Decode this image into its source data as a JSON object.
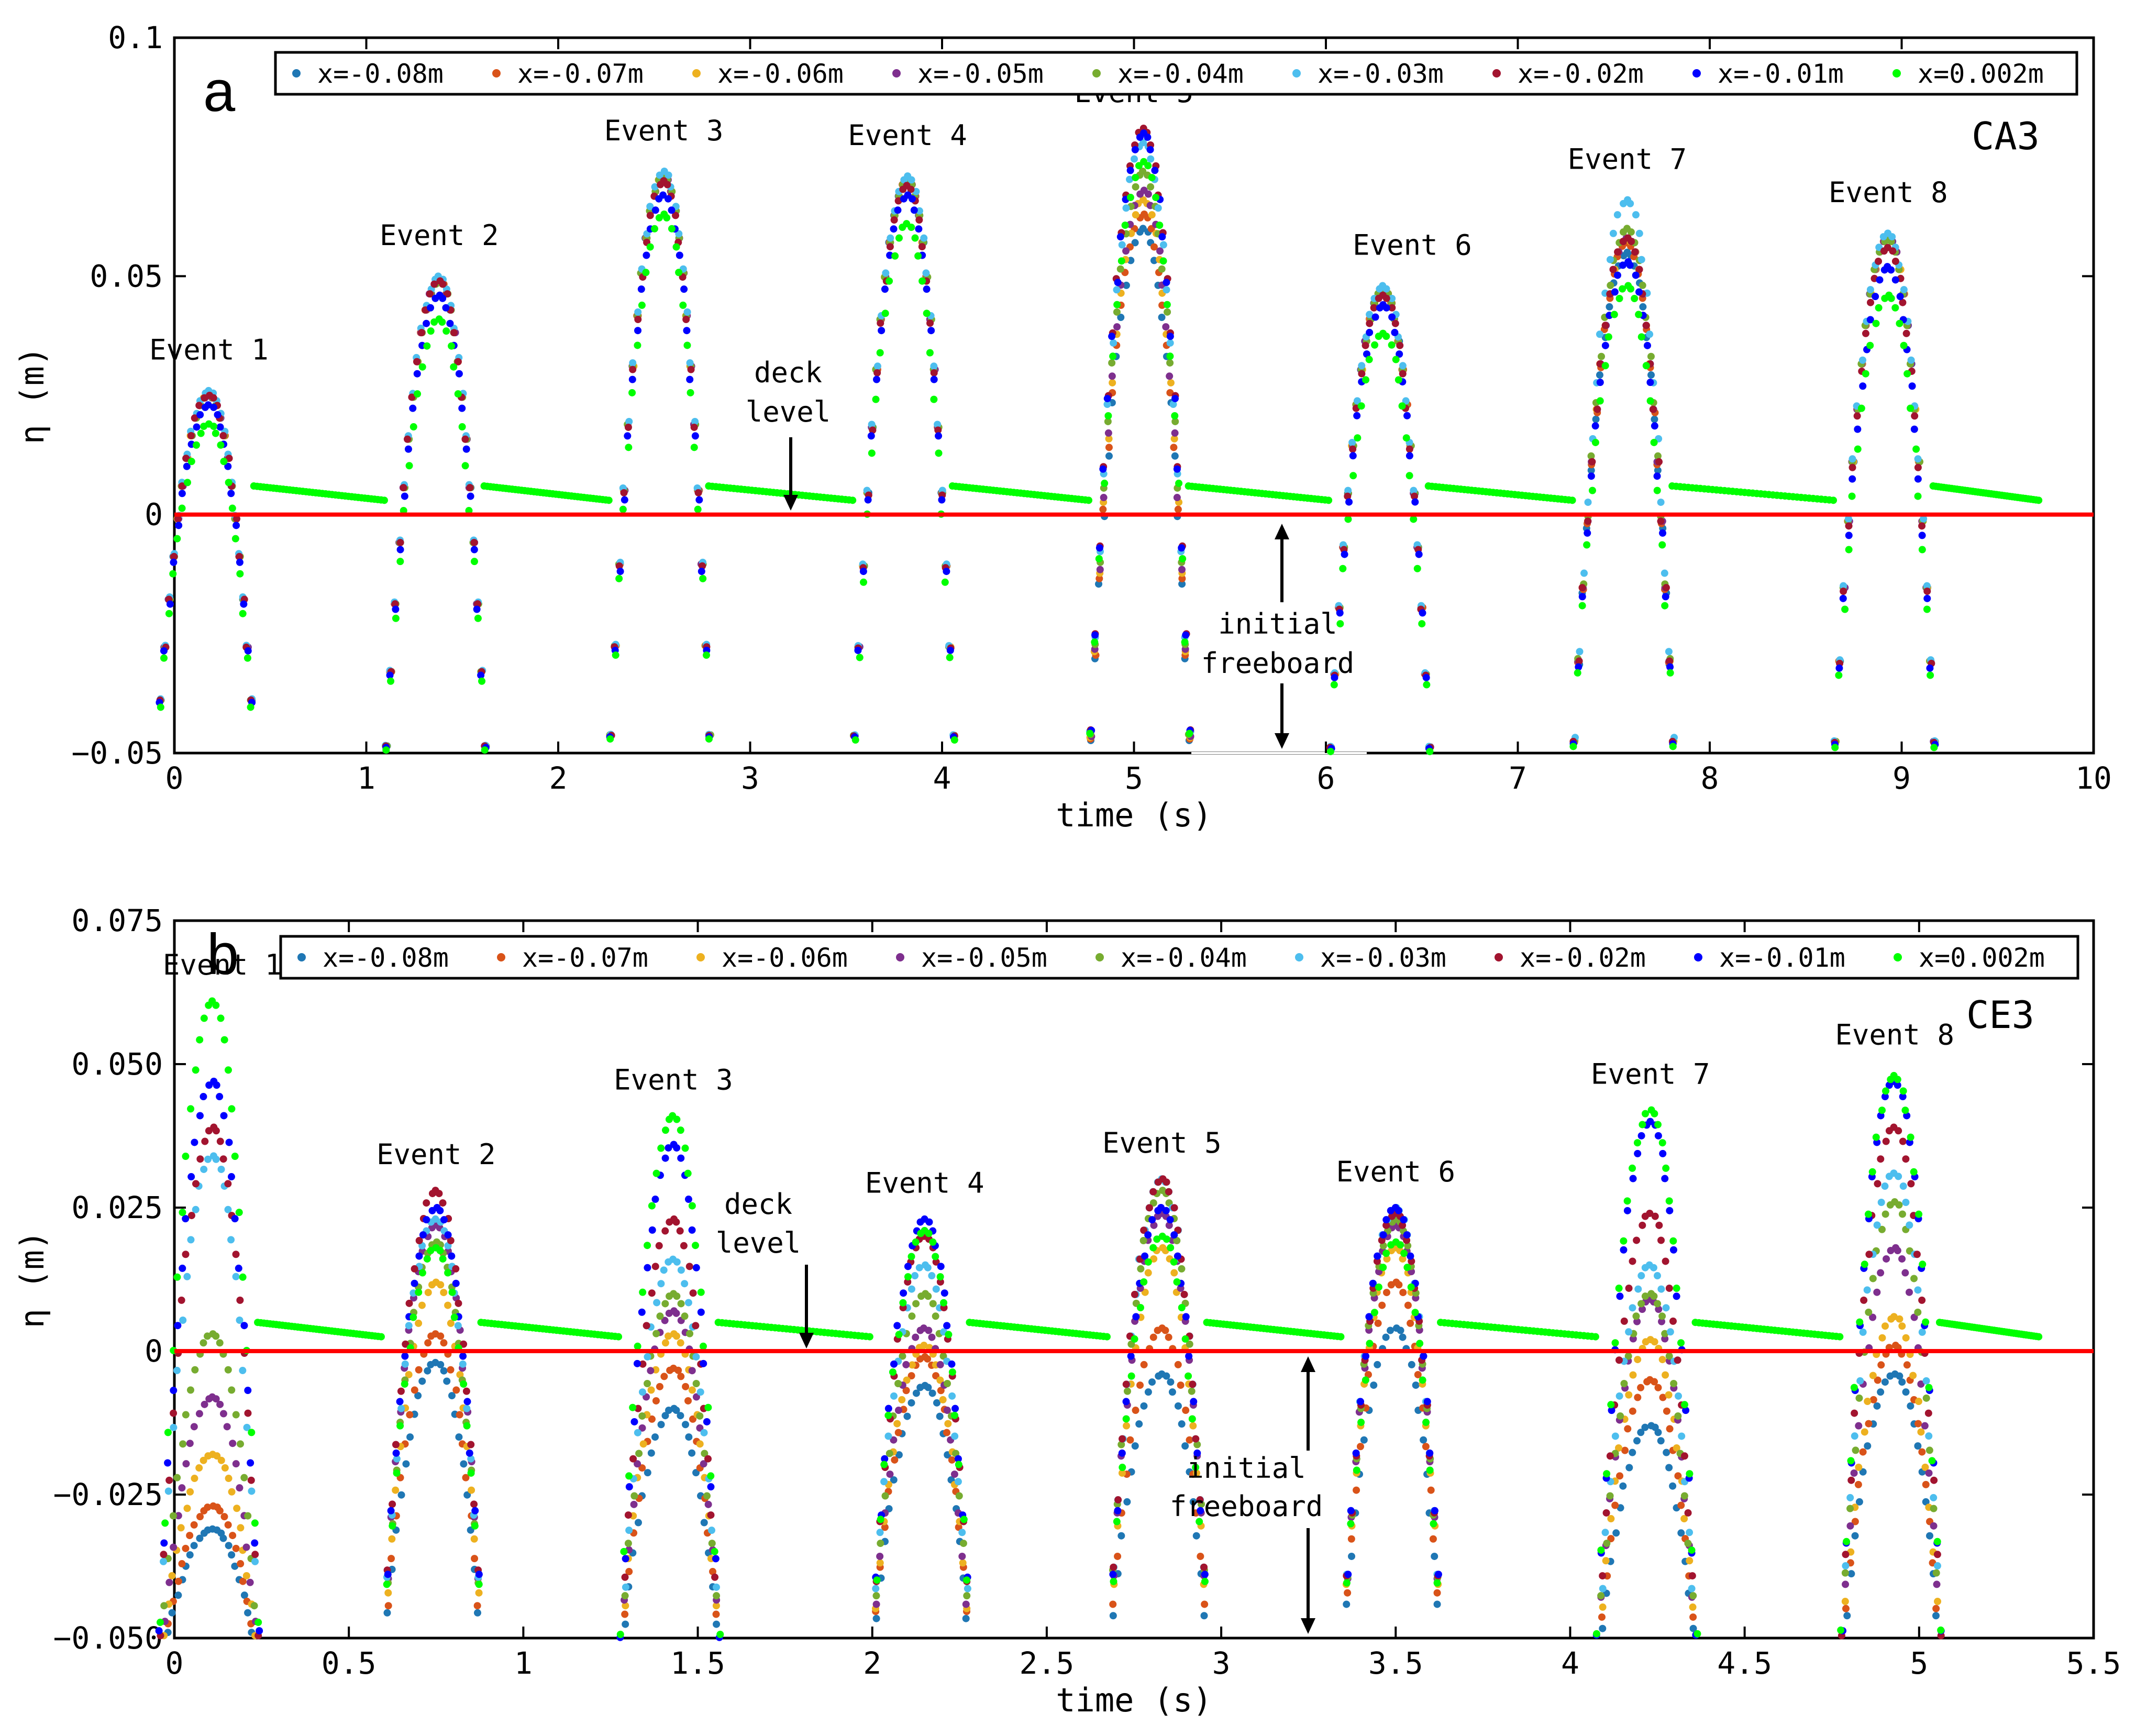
{
  "colors": {
    "deck_line": "#ff0000",
    "series": [
      "#1f77b4",
      "#d95319",
      "#edb120",
      "#7e2f8e",
      "#77ac30",
      "#4dbeee",
      "#a2142f",
      "#0000ff",
      "#00ff00"
    ]
  },
  "panels": [
    {
      "letter": "a",
      "case_label": "CA3",
      "xlabel": "time (s)",
      "ylabel": "η (m)",
      "xlim": [
        0,
        10
      ],
      "ylim": [
        -0.05,
        0.1
      ],
      "xticks": [
        "0",
        "1",
        "2",
        "3",
        "4",
        "5",
        "6",
        "7",
        "8",
        "9",
        "10"
      ],
      "yticks": [
        "-0.05",
        "0",
        "0.05",
        "0.1"
      ],
      "deck_label": [
        "deck",
        "level"
      ],
      "freeboard_label": [
        "initial",
        "freeboard"
      ],
      "events": [
        "Event 1",
        "Event 2",
        "Event 3",
        "Event 4",
        "Event 5",
        "Event 6",
        "Event 7",
        "Event 8"
      ],
      "legend": [
        "x=-0.08m",
        "x=-0.07m",
        "x=-0.06m",
        "x=-0.05m",
        "x=-0.04m",
        "x=-0.03m",
        "x=-0.02m",
        "x=-0.01m",
        "x=0.002m"
      ]
    },
    {
      "letter": "b",
      "case_label": "CE3",
      "xlabel": "time (s)",
      "ylabel": "η (m)",
      "xlim": [
        0,
        5.5
      ],
      "ylim": [
        -0.05,
        0.075
      ],
      "xticks": [
        "0",
        "0.5",
        "1",
        "1.5",
        "2",
        "2.5",
        "3",
        "3.5",
        "4",
        "4.5",
        "5",
        "5.5"
      ],
      "yticks": [
        "-0.050",
        "-0.025",
        "0",
        "0.025",
        "0.050",
        "0.075"
      ],
      "deck_label": [
        "deck",
        "level"
      ],
      "freeboard_label": [
        "initial",
        "freeboard"
      ],
      "events": [
        "Event 1",
        "Event 2",
        "Event 3",
        "Event 4",
        "Event 5",
        "Event 6",
        "Event 7",
        "Event 8"
      ],
      "legend": [
        "x=-0.08m",
        "x=-0.07m",
        "x=-0.06m",
        "x=-0.05m",
        "x=-0.04m",
        "x=-0.03m",
        "x=-0.02m",
        "x=-0.01m",
        "x=0.002m"
      ]
    }
  ],
  "chart_data": [
    {
      "type": "scatter",
      "panel": "a",
      "xlim": [
        0,
        10
      ],
      "ylim": [
        -0.05,
        0.1
      ],
      "xlabel": "time (s)",
      "ylabel": "η (m)",
      "legend_position": "top",
      "deck_level": 0,
      "event_times": [
        0.18,
        1.38,
        2.55,
        3.82,
        5.05,
        6.3,
        7.57,
        8.93
      ],
      "series": [
        {
          "name": "x=-0.08m",
          "peaks": [
            0.025,
            0.049,
            0.071,
            0.07,
            0.06,
            0.047,
            0.055,
            0.058
          ]
        },
        {
          "name": "x=-0.07m",
          "peaks": [
            0.025,
            0.049,
            0.071,
            0.07,
            0.063,
            0.047,
            0.057,
            0.058
          ]
        },
        {
          "name": "x=-0.06m",
          "peaks": [
            0.025,
            0.049,
            0.071,
            0.07,
            0.066,
            0.047,
            0.058,
            0.058
          ]
        },
        {
          "name": "x=-0.05m",
          "peaks": [
            0.025,
            0.049,
            0.071,
            0.07,
            0.068,
            0.047,
            0.058,
            0.058
          ]
        },
        {
          "name": "x=-0.04m",
          "peaks": [
            0.025,
            0.049,
            0.071,
            0.07,
            0.072,
            0.047,
            0.06,
            0.058
          ]
        },
        {
          "name": "x=-0.03m",
          "peaks": [
            0.026,
            0.05,
            0.072,
            0.071,
            0.078,
            0.048,
            0.066,
            0.059
          ]
        },
        {
          "name": "x=-0.02m",
          "peaks": [
            0.025,
            0.049,
            0.07,
            0.069,
            0.081,
            0.046,
            0.058,
            0.056
          ]
        },
        {
          "name": "x=-0.01m",
          "peaks": [
            0.023,
            0.046,
            0.067,
            0.067,
            0.08,
            0.044,
            0.053,
            0.052
          ]
        },
        {
          "name": "x=0.002m",
          "peaks": [
            0.019,
            0.041,
            0.063,
            0.061,
            0.074,
            0.038,
            0.048,
            0.046
          ]
        }
      ]
    },
    {
      "type": "scatter",
      "panel": "b",
      "xlim": [
        0,
        5.5
      ],
      "ylim": [
        -0.05,
        0.075
      ],
      "xlabel": "time (s)",
      "ylabel": "η (m)",
      "legend_position": "top",
      "deck_level": 0,
      "event_times": [
        0.11,
        0.75,
        1.43,
        2.15,
        2.83,
        3.5,
        4.23,
        4.93
      ],
      "series": [
        {
          "name": "x=-0.08m",
          "peaks": [
            -0.031,
            -0.002,
            -0.01,
            -0.006,
            -0.004,
            0.004,
            -0.013,
            -0.004
          ]
        },
        {
          "name": "x=-0.07m",
          "peaks": [
            -0.027,
            0.003,
            -0.003,
            -0.001,
            0.004,
            0.012,
            -0.005,
            0.001
          ]
        },
        {
          "name": "x=-0.06m",
          "peaks": [
            -0.018,
            0.012,
            0.003,
            0.001,
            0.018,
            0.018,
            0.002,
            0.006
          ]
        },
        {
          "name": "x=-0.05m",
          "peaks": [
            -0.008,
            0.022,
            0.007,
            0.004,
            0.024,
            0.022,
            0.009,
            0.018
          ]
        },
        {
          "name": "x=-0.04m",
          "peaks": [
            0.003,
            0.019,
            0.01,
            0.01,
            0.028,
            0.023,
            0.01,
            0.026
          ]
        },
        {
          "name": "x=-0.03m",
          "peaks": [
            0.034,
            0.023,
            0.016,
            0.015,
            0.03,
            0.025,
            0.015,
            0.031
          ]
        },
        {
          "name": "x=-0.02m",
          "peaks": [
            0.039,
            0.028,
            0.023,
            0.02,
            0.03,
            0.024,
            0.024,
            0.039
          ]
        },
        {
          "name": "x=-0.01m",
          "peaks": [
            0.047,
            0.025,
            0.036,
            0.023,
            0.025,
            0.025,
            0.04,
            0.047
          ]
        },
        {
          "name": "x=0.002m",
          "peaks": [
            0.061,
            0.018,
            0.041,
            0.021,
            0.02,
            0.019,
            0.042,
            0.048
          ]
        }
      ]
    }
  ]
}
